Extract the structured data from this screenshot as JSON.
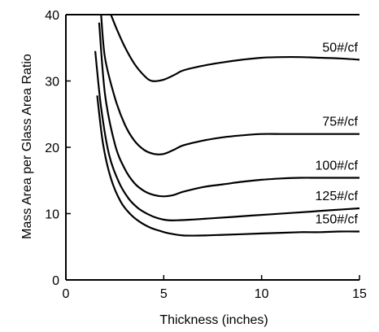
{
  "chart_data": {
    "type": "line",
    "title": "",
    "xlabel": "Thickness (inches)",
    "ylabel": "Mass Area per Glass Area Ratio",
    "xlim": [
      0,
      15
    ],
    "ylim": [
      0,
      40
    ],
    "x_ticks": [
      "0",
      "5",
      "10",
      "15"
    ],
    "y_ticks": [
      "0",
      "10",
      "20",
      "30",
      "40"
    ],
    "grid": false,
    "legend": "labels at line ends (right)",
    "series": [
      {
        "name": "50#/cf",
        "x": [
          2.3,
          2.6,
          3.0,
          3.5,
          4.0,
          4.4,
          5.0,
          5.6,
          6.0,
          7.0,
          8.0,
          9.0,
          10.0,
          11.0,
          12.0,
          13.0,
          14.0,
          15.0
        ],
        "y": [
          40.0,
          37.8,
          35.2,
          32.6,
          30.8,
          30.0,
          30.2,
          31.0,
          31.6,
          32.3,
          32.8,
          33.2,
          33.5,
          33.6,
          33.6,
          33.5,
          33.4,
          33.2
        ]
      },
      {
        "name": "75#/cf",
        "x": [
          1.8,
          2.0,
          2.5,
          3.0,
          3.5,
          4.0,
          4.5,
          5.0,
          5.5,
          6.0,
          7.0,
          8.0,
          9.0,
          10.0,
          11.0,
          12.0,
          13.0,
          14.0,
          15.0
        ],
        "y": [
          40.0,
          33.5,
          27.5,
          23.5,
          21.0,
          19.6,
          19.0,
          19.0,
          19.6,
          20.3,
          21.0,
          21.5,
          21.8,
          22.0,
          22.0,
          22.0,
          22.0,
          22.0,
          22.0
        ]
      },
      {
        "name": "100#/cf",
        "x": [
          1.7,
          2.0,
          2.5,
          3.0,
          3.5,
          4.0,
          4.5,
          5.0,
          5.5,
          6.0,
          7.0,
          8.0,
          9.0,
          10.0,
          11.0,
          12.0,
          13.0,
          14.0,
          15.0
        ],
        "y": [
          38.8,
          28.0,
          20.5,
          16.8,
          14.6,
          13.4,
          12.8,
          12.6,
          12.8,
          13.3,
          14.0,
          14.4,
          14.8,
          15.1,
          15.3,
          15.4,
          15.4,
          15.4,
          15.4
        ]
      },
      {
        "name": "125#/cf",
        "x": [
          1.5,
          1.8,
          2.2,
          2.7,
          3.2,
          3.7,
          4.2,
          4.7,
          5.2,
          5.8,
          6.5,
          7.5,
          8.5,
          9.5,
          10.5,
          11.5,
          12.5,
          13.5,
          15.0
        ],
        "y": [
          34.5,
          26.0,
          19.0,
          14.8,
          12.3,
          10.8,
          9.9,
          9.3,
          9.0,
          9.0,
          9.1,
          9.3,
          9.5,
          9.7,
          9.9,
          10.1,
          10.3,
          10.5,
          10.8
        ]
      },
      {
        "name": "150#/cf",
        "x": [
          1.6,
          1.9,
          2.3,
          2.8,
          3.3,
          3.8,
          4.3,
          4.8,
          5.3,
          6.0,
          7.0,
          8.0,
          9.0,
          10.0,
          11.0,
          12.0,
          13.0,
          14.0,
          15.0
        ],
        "y": [
          27.8,
          20.5,
          15.3,
          11.8,
          9.9,
          8.7,
          7.9,
          7.4,
          7.0,
          6.7,
          6.7,
          6.8,
          6.9,
          7.0,
          7.1,
          7.2,
          7.2,
          7.3,
          7.3
        ]
      }
    ]
  }
}
